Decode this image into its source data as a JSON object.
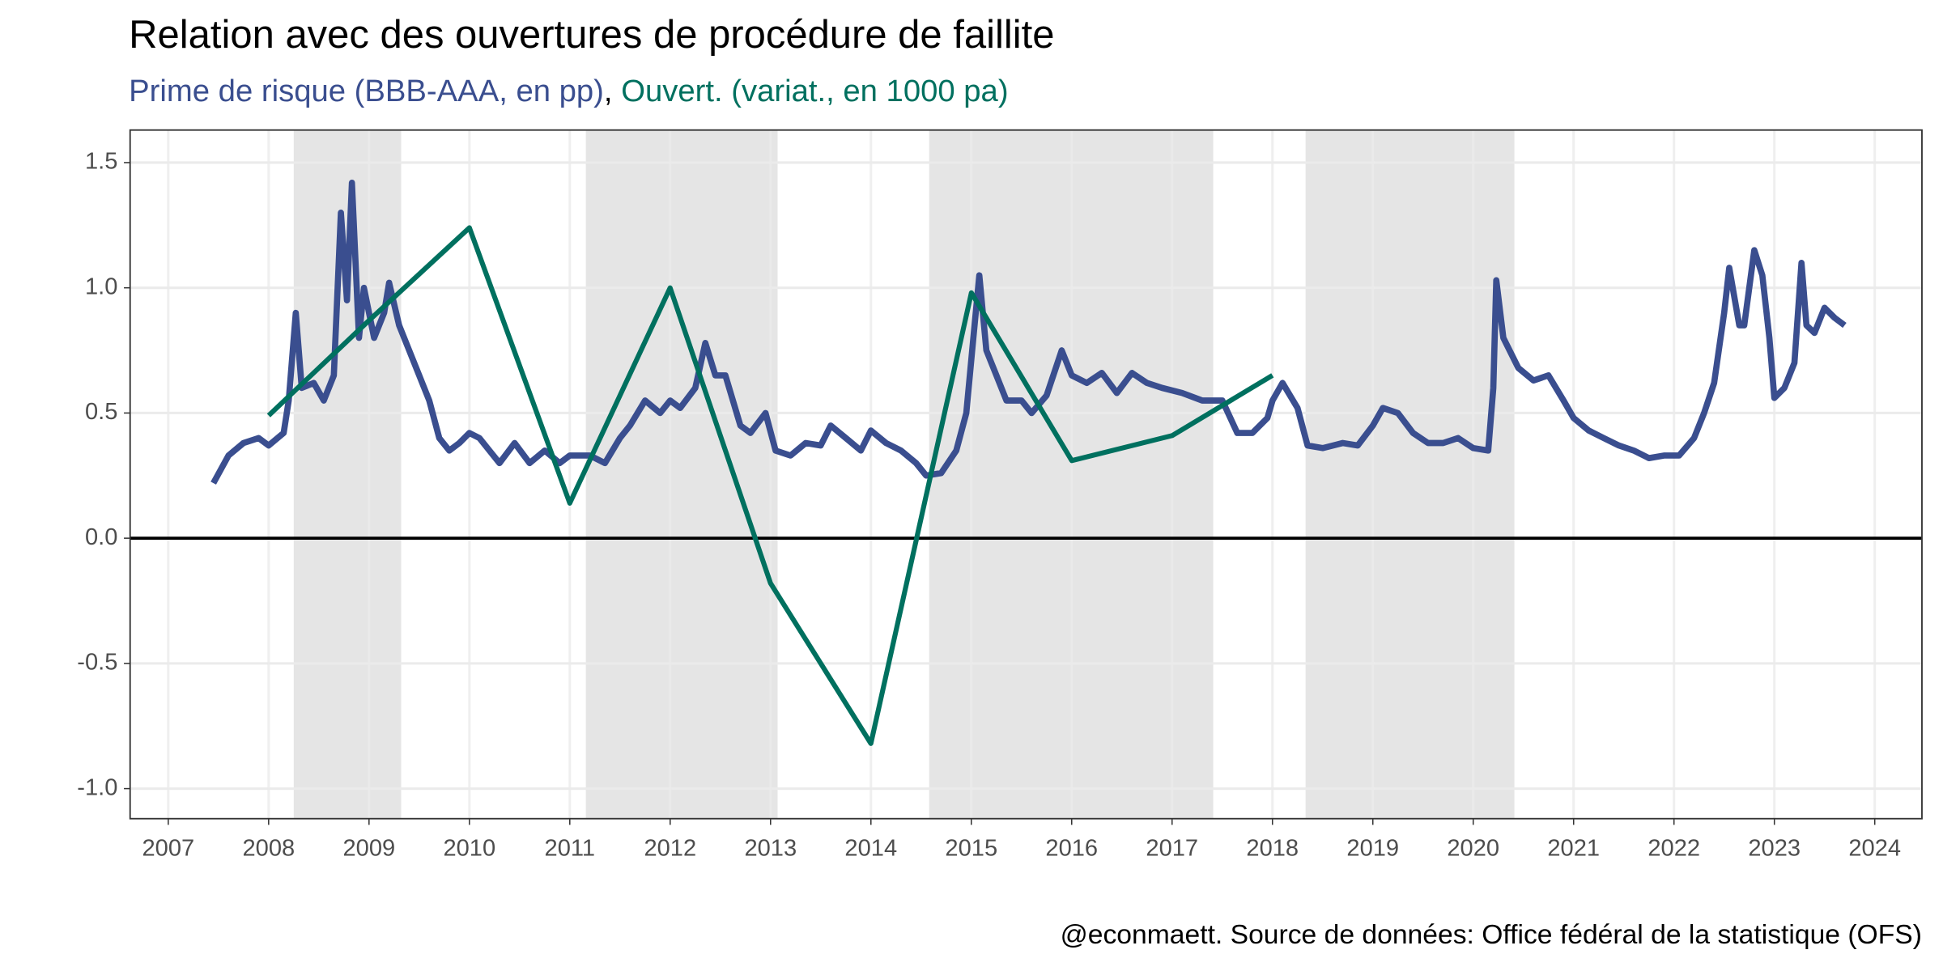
{
  "chart_data": {
    "type": "line",
    "title": "Relation avec des ouvertures de procédure de faillite",
    "subtitle_separator": ", ",
    "caption": "@econmaett. Source de données: Office fédéral de la statistique (OFS)",
    "xlim": [
      2006.62,
      2024.47
    ],
    "ylim": [
      -1.12,
      1.63
    ],
    "xticks": [
      2007,
      2008,
      2009,
      2010,
      2011,
      2012,
      2013,
      2014,
      2015,
      2016,
      2017,
      2018,
      2019,
      2020,
      2021,
      2022,
      2023,
      2024
    ],
    "yticks": [
      {
        "value": -1,
        "label": "-1.0"
      },
      {
        "value": -0.5,
        "label": "-0.5"
      },
      {
        "value": 0,
        "label": "0.0"
      },
      {
        "value": 0.5,
        "label": "0.5"
      },
      {
        "value": 1,
        "label": "1.0"
      },
      {
        "value": 1.5,
        "label": "1.5"
      }
    ],
    "grid": true,
    "zero_line": true,
    "shaded_periods": [
      [
        2008.25,
        2009.32
      ],
      [
        2011.16,
        2013.07
      ],
      [
        2014.58,
        2017.41
      ],
      [
        2018.33,
        2020.41
      ]
    ],
    "shade_color": "#e5e5e5",
    "series": [
      {
        "name": "Prime de risque (BBB-AAA, en pp)",
        "color": "#3a4e8f",
        "x": [
          2007.45,
          2007.6,
          2007.75,
          2007.9,
          2008.0,
          2008.15,
          2008.2,
          2008.27,
          2008.33,
          2008.45,
          2008.55,
          2008.65,
          2008.72,
          2008.78,
          2008.83,
          2008.9,
          2008.95,
          2009.05,
          2009.15,
          2009.2,
          2009.3,
          2009.4,
          2009.5,
          2009.6,
          2009.7,
          2009.8,
          2009.9,
          2010.0,
          2010.1,
          2010.2,
          2010.3,
          2010.45,
          2010.6,
          2010.75,
          2010.9,
          2011.0,
          2011.2,
          2011.35,
          2011.5,
          2011.6,
          2011.75,
          2011.9,
          2012.0,
          2012.1,
          2012.25,
          2012.35,
          2012.45,
          2012.55,
          2012.7,
          2012.8,
          2012.95,
          2013.05,
          2013.2,
          2013.35,
          2013.5,
          2013.6,
          2013.75,
          2013.9,
          2014.0,
          2014.15,
          2014.3,
          2014.45,
          2014.55,
          2014.7,
          2014.85,
          2014.95,
          2015.02,
          2015.08,
          2015.15,
          2015.25,
          2015.35,
          2015.5,
          2015.6,
          2015.75,
          2015.9,
          2016.0,
          2016.15,
          2016.3,
          2016.45,
          2016.6,
          2016.75,
          2016.9,
          2017.1,
          2017.3,
          2017.5,
          2017.65,
          2017.8,
          2017.95,
          2018.0,
          2018.1,
          2018.25,
          2018.35,
          2018.5,
          2018.7,
          2018.85,
          2019.0,
          2019.1,
          2019.25,
          2019.4,
          2019.55,
          2019.7,
          2019.85,
          2020.0,
          2020.15,
          2020.2,
          2020.23,
          2020.3,
          2020.45,
          2020.6,
          2020.75,
          2020.9,
          2021.0,
          2021.15,
          2021.3,
          2021.45,
          2021.6,
          2021.75,
          2021.9,
          2022.05,
          2022.2,
          2022.3,
          2022.4,
          2022.5,
          2022.55,
          2022.65,
          2022.7,
          2022.8,
          2022.88,
          2022.95,
          2023.0,
          2023.1,
          2023.2,
          2023.27,
          2023.32,
          2023.4,
          2023.5,
          2023.6,
          2023.7
        ],
        "values": [
          0.22,
          0.33,
          0.38,
          0.4,
          0.37,
          0.42,
          0.55,
          0.9,
          0.6,
          0.62,
          0.55,
          0.65,
          1.3,
          0.95,
          1.42,
          0.8,
          1.0,
          0.8,
          0.9,
          1.02,
          0.85,
          0.75,
          0.65,
          0.55,
          0.4,
          0.35,
          0.38,
          0.42,
          0.4,
          0.35,
          0.3,
          0.38,
          0.3,
          0.35,
          0.3,
          0.33,
          0.33,
          0.3,
          0.4,
          0.45,
          0.55,
          0.5,
          0.55,
          0.52,
          0.6,
          0.78,
          0.65,
          0.65,
          0.45,
          0.42,
          0.5,
          0.35,
          0.33,
          0.38,
          0.37,
          0.45,
          0.4,
          0.35,
          0.43,
          0.38,
          0.35,
          0.3,
          0.25,
          0.26,
          0.35,
          0.5,
          0.8,
          1.05,
          0.75,
          0.65,
          0.55,
          0.55,
          0.5,
          0.57,
          0.75,
          0.65,
          0.62,
          0.66,
          0.58,
          0.66,
          0.62,
          0.6,
          0.58,
          0.55,
          0.55,
          0.42,
          0.42,
          0.48,
          0.55,
          0.62,
          0.52,
          0.37,
          0.36,
          0.38,
          0.37,
          0.45,
          0.52,
          0.5,
          0.42,
          0.38,
          0.38,
          0.4,
          0.36,
          0.35,
          0.6,
          1.03,
          0.8,
          0.68,
          0.63,
          0.65,
          0.55,
          0.48,
          0.43,
          0.4,
          0.37,
          0.35,
          0.32,
          0.33,
          0.33,
          0.4,
          0.5,
          0.62,
          0.9,
          1.08,
          0.85,
          0.85,
          1.15,
          1.05,
          0.8,
          0.56,
          0.6,
          0.7,
          1.1,
          0.85,
          0.82,
          0.92,
          0.88,
          0.85
        ]
      },
      {
        "name": "Ouvert. (variat., en 1000 pa)",
        "color": "#00705f",
        "x": [
          2008,
          2009,
          2010,
          2011,
          2012,
          2013,
          2014,
          2015,
          2016,
          2017,
          2018
        ],
        "values": [
          0.49,
          0.87,
          1.24,
          0.14,
          1.0,
          -0.18,
          -0.82,
          0.98,
          0.31,
          0.41,
          0.65
        ]
      }
    ]
  }
}
